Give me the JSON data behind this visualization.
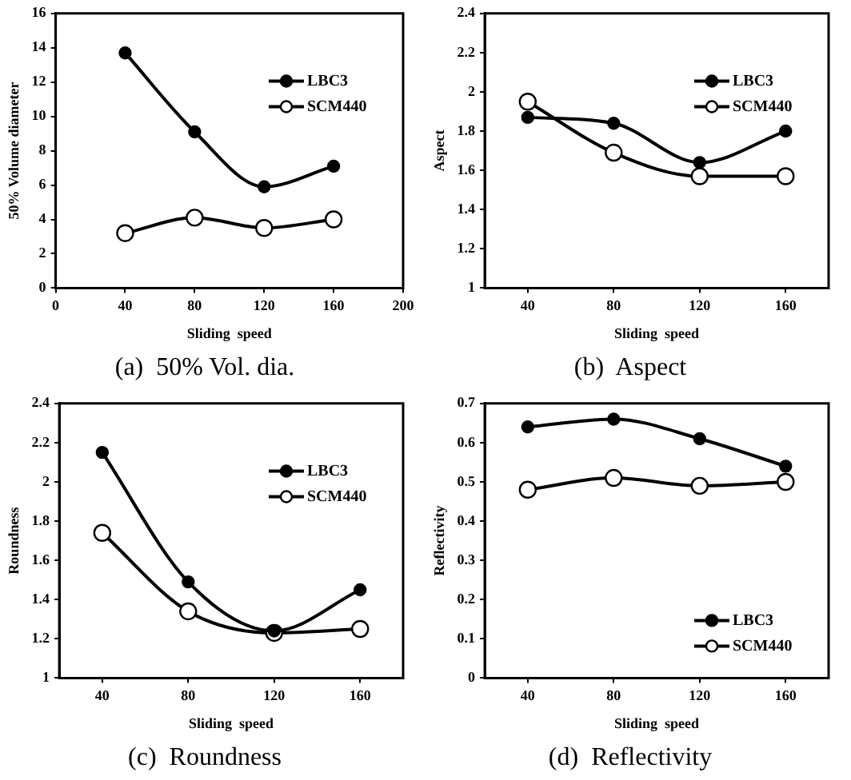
{
  "chart_data": [
    {
      "type": "line",
      "title": "(a)  50% Vol. dia.",
      "xlabel": "Sliding  speed",
      "ylabel": "50% Volume diameter",
      "x": [
        40,
        80,
        120,
        160
      ],
      "xlim": [
        0,
        200
      ],
      "xticks": [
        0,
        40,
        80,
        120,
        160,
        200
      ],
      "ylim": [
        0,
        16
      ],
      "yticks": [
        0,
        2,
        4,
        6,
        8,
        10,
        12,
        14,
        16
      ],
      "marker": "circle",
      "grid": false,
      "legend": "top right",
      "series": [
        {
          "name": "LBC3",
          "color": "#000000",
          "values": [
            13.7,
            9.1,
            5.9,
            7.1
          ]
        },
        {
          "name": "SCM440",
          "color": "#000000",
          "values": [
            3.2,
            4.1,
            3.5,
            4.0
          ]
        }
      ]
    },
    {
      "type": "line",
      "title": "(b)  Aspect",
      "xlabel": "Sliding  speed",
      "ylabel": "Aspect",
      "x": [
        40,
        80,
        120,
        160
      ],
      "xlim": [
        20,
        180
      ],
      "xticks": [
        40,
        80,
        120,
        160
      ],
      "ylim": [
        1,
        2.4
      ],
      "yticks": [
        1,
        1.2,
        1.4,
        1.6,
        1.8,
        2,
        2.2,
        2.4
      ],
      "marker": "circle",
      "grid": false,
      "legend": "top right",
      "series": [
        {
          "name": "LBC3",
          "color": "#000000",
          "values": [
            1.87,
            1.84,
            1.64,
            1.8
          ]
        },
        {
          "name": "SCM440",
          "color": "#000000",
          "values": [
            1.95,
            1.69,
            1.57,
            1.57
          ]
        }
      ]
    },
    {
      "type": "line",
      "title": "(c)  Roundness",
      "xlabel": "Sliding  speed",
      "ylabel": "Roundness",
      "x": [
        40,
        80,
        120,
        160
      ],
      "xlim": [
        20,
        180
      ],
      "xticks": [
        40,
        80,
        120,
        160
      ],
      "ylim": [
        1,
        2.4
      ],
      "yticks": [
        1,
        1.2,
        1.4,
        1.6,
        1.8,
        2,
        2.2,
        2.4
      ],
      "marker": "circle",
      "grid": false,
      "legend": "top right",
      "series": [
        {
          "name": "LBC3",
          "color": "#000000",
          "values": [
            2.15,
            1.49,
            1.24,
            1.45
          ]
        },
        {
          "name": "SCM440",
          "color": "#000000",
          "values": [
            1.74,
            1.34,
            1.23,
            1.25
          ]
        }
      ]
    },
    {
      "type": "line",
      "title": "(d)  Reflectivity",
      "xlabel": "Sliding  speed",
      "ylabel": "Reflectivity",
      "x": [
        40,
        80,
        120,
        160
      ],
      "xlim": [
        20,
        180
      ],
      "xticks": [
        40,
        80,
        120,
        160
      ],
      "ylim": [
        0,
        0.7
      ],
      "yticks": [
        0,
        0.1,
        0.2,
        0.3,
        0.4,
        0.5,
        0.6,
        0.7
      ],
      "marker": "circle",
      "grid": false,
      "legend": "bottom right",
      "series": [
        {
          "name": "LBC3",
          "color": "#000000",
          "values": [
            0.64,
            0.66,
            0.61,
            0.54
          ]
        },
        {
          "name": "SCM440",
          "color": "#000000",
          "values": [
            0.48,
            0.51,
            0.49,
            0.5
          ]
        }
      ]
    }
  ]
}
